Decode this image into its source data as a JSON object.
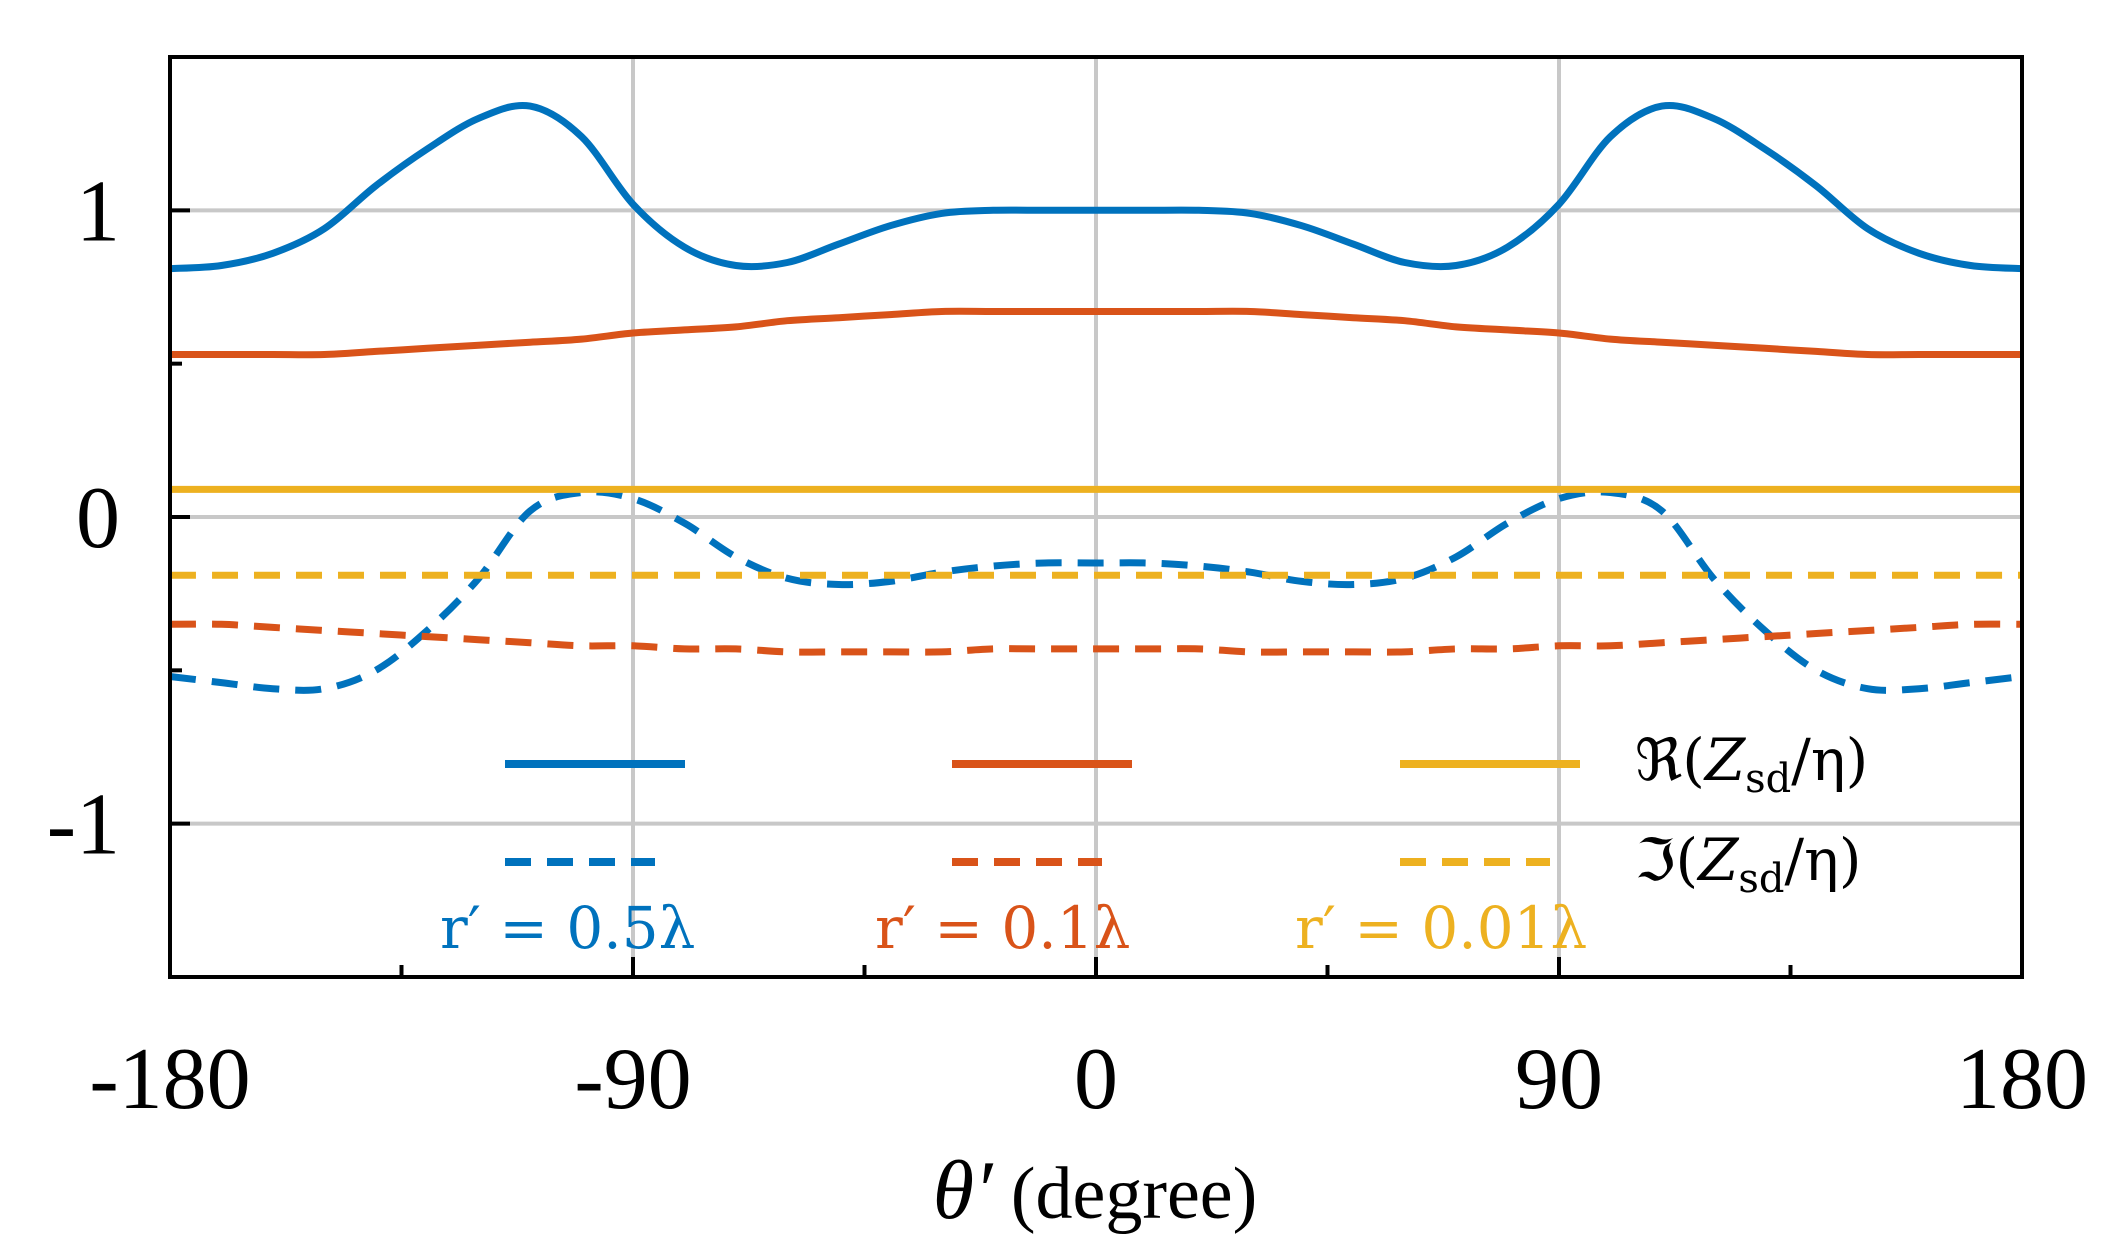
{
  "chart_data": {
    "type": "line",
    "title": "",
    "xlabel": "θ′",
    "xlabel_unit": "(degree)",
    "ylabel": "",
    "xlim": [
      -180,
      180
    ],
    "ylim": [
      -1.5,
      1.5
    ],
    "xticks": [
      -180,
      -90,
      0,
      90,
      180
    ],
    "xtick_labels": [
      "-180",
      "-90",
      "0",
      "90",
      "180"
    ],
    "xminor": [
      -135,
      -45,
      45,
      135
    ],
    "yticks": [
      -1,
      0,
      1
    ],
    "ytick_labels": [
      "-1",
      "0",
      "1"
    ],
    "yminor": [
      -0.5,
      0.5
    ],
    "grid": true,
    "x": [
      -180,
      -170,
      -160,
      -150,
      -140,
      -130,
      -120,
      -110,
      -100,
      -90,
      -80,
      -70,
      -60,
      -50,
      -40,
      -30,
      -20,
      -10,
      0,
      10,
      20,
      30,
      40,
      50,
      60,
      70,
      80,
      90,
      100,
      110,
      120,
      130,
      140,
      150,
      160,
      170,
      180
    ],
    "series": [
      {
        "name": "Re r'=0.5λ",
        "color": "#0072BD",
        "style": "solid",
        "values": [
          0.81,
          0.82,
          0.86,
          0.94,
          1.08,
          1.2,
          1.3,
          1.34,
          1.24,
          1.02,
          0.88,
          0.82,
          0.83,
          0.89,
          0.95,
          0.99,
          1.0,
          1.0,
          1.0,
          1.0,
          1.0,
          0.99,
          0.95,
          0.89,
          0.83,
          0.82,
          0.88,
          1.02,
          1.24,
          1.34,
          1.3,
          1.2,
          1.08,
          0.94,
          0.86,
          0.82,
          0.81
        ]
      },
      {
        "name": "Im r'=0.5λ",
        "color": "#0072BD",
        "style": "dashed",
        "values": [
          -0.52,
          -0.54,
          -0.56,
          -0.56,
          -0.5,
          -0.37,
          -0.2,
          0.02,
          0.08,
          0.06,
          -0.02,
          -0.13,
          -0.2,
          -0.22,
          -0.21,
          -0.18,
          -0.16,
          -0.15,
          -0.15,
          -0.15,
          -0.16,
          -0.18,
          -0.21,
          -0.22,
          -0.2,
          -0.13,
          -0.02,
          0.06,
          0.08,
          0.02,
          -0.2,
          -0.37,
          -0.5,
          -0.56,
          -0.56,
          -0.54,
          -0.52
        ]
      },
      {
        "name": "Re r'=0.1λ",
        "color": "#D95319",
        "style": "solid",
        "values": [
          0.53,
          0.53,
          0.53,
          0.53,
          0.54,
          0.55,
          0.56,
          0.57,
          0.58,
          0.6,
          0.61,
          0.62,
          0.64,
          0.65,
          0.66,
          0.67,
          0.67,
          0.67,
          0.67,
          0.67,
          0.67,
          0.67,
          0.66,
          0.65,
          0.64,
          0.62,
          0.61,
          0.6,
          0.58,
          0.57,
          0.56,
          0.55,
          0.54,
          0.53,
          0.53,
          0.53,
          0.53
        ]
      },
      {
        "name": "Im r'=0.1λ",
        "color": "#D95319",
        "style": "dashed",
        "values": [
          -0.35,
          -0.35,
          -0.36,
          -0.37,
          -0.38,
          -0.39,
          -0.4,
          -0.41,
          -0.42,
          -0.42,
          -0.43,
          -0.43,
          -0.44,
          -0.44,
          -0.44,
          -0.44,
          -0.43,
          -0.43,
          -0.43,
          -0.43,
          -0.43,
          -0.44,
          -0.44,
          -0.44,
          -0.44,
          -0.43,
          -0.43,
          -0.42,
          -0.42,
          -0.41,
          -0.4,
          -0.39,
          -0.38,
          -0.37,
          -0.36,
          -0.35,
          -0.35
        ]
      },
      {
        "name": "Re r'=0.01λ",
        "color": "#EDB120",
        "style": "solid",
        "values": [
          0.09,
          0.09,
          0.09,
          0.09,
          0.09,
          0.09,
          0.09,
          0.09,
          0.09,
          0.09,
          0.09,
          0.09,
          0.09,
          0.09,
          0.09,
          0.09,
          0.09,
          0.09,
          0.09,
          0.09,
          0.09,
          0.09,
          0.09,
          0.09,
          0.09,
          0.09,
          0.09,
          0.09,
          0.09,
          0.09,
          0.09,
          0.09,
          0.09,
          0.09,
          0.09,
          0.09,
          0.09
        ]
      },
      {
        "name": "Im r'=0.01λ",
        "color": "#EDB120",
        "style": "dashed",
        "values": [
          -0.19,
          -0.19,
          -0.19,
          -0.19,
          -0.19,
          -0.19,
          -0.19,
          -0.19,
          -0.19,
          -0.19,
          -0.19,
          -0.19,
          -0.19,
          -0.19,
          -0.19,
          -0.19,
          -0.19,
          -0.19,
          -0.19,
          -0.19,
          -0.19,
          -0.19,
          -0.19,
          -0.19,
          -0.19,
          -0.19,
          -0.19,
          -0.19,
          -0.19,
          -0.19,
          -0.19,
          -0.19,
          -0.19,
          -0.19,
          -0.19,
          -0.19,
          -0.19
        ]
      }
    ],
    "legend": {
      "position": "lower-center",
      "row_labels": {
        "real_prefix": "ℜ(",
        "imag_prefix": "ℑ(",
        "z": "Z",
        "sub": "sd",
        "suffix": "/η)"
      },
      "groups": [
        {
          "label": "r′ = 0.5λ",
          "color": "#0072BD"
        },
        {
          "label": "r′ = 0.1λ",
          "color": "#D95319"
        },
        {
          "label": "r′ = 0.01λ",
          "color": "#EDB120"
        }
      ]
    }
  }
}
